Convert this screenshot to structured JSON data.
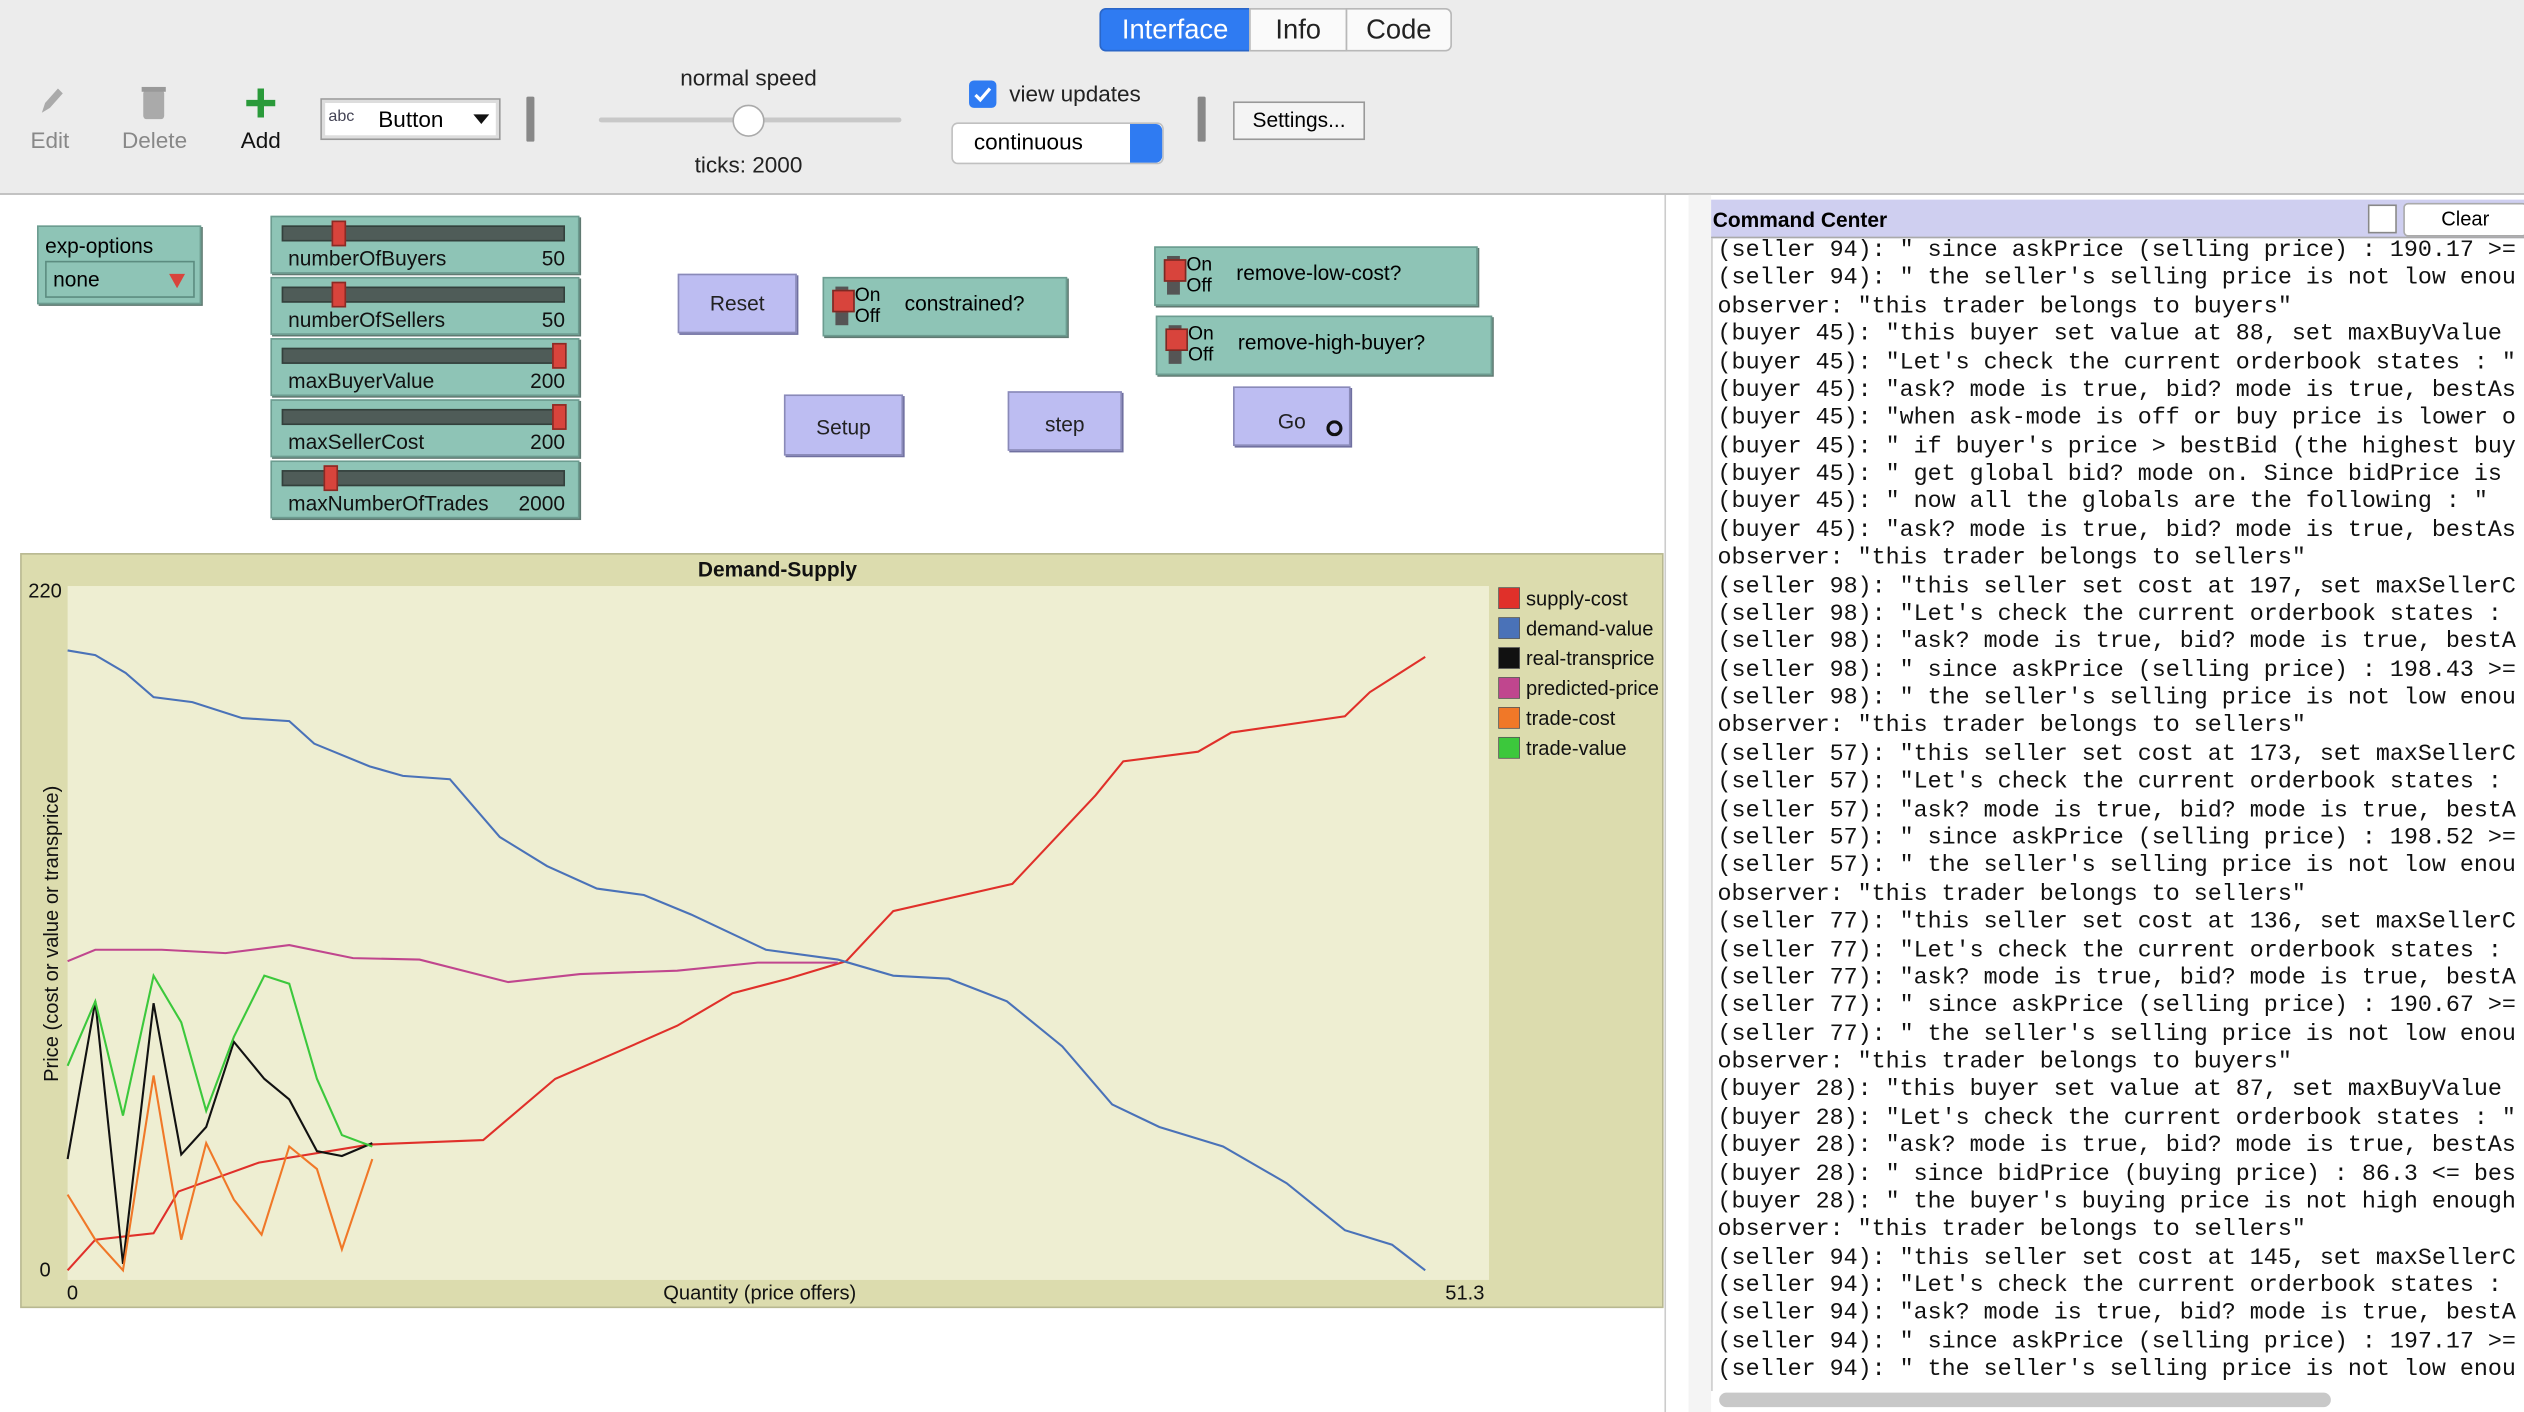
{
  "tabs": [
    "Interface",
    "Info",
    "Code"
  ],
  "toolbar": {
    "edit": "Edit",
    "delete": "Delete",
    "add": "Add",
    "widget_type": "Button",
    "speed_label": "normal speed",
    "ticks_label": "ticks: 2000",
    "view_updates": "view updates",
    "update_mode": "continuous",
    "settings": "Settings..."
  },
  "widgets": {
    "chooser": {
      "label": "exp-options",
      "value": "none"
    },
    "sliders": [
      {
        "name": "numberOfBuyers",
        "value": 50
      },
      {
        "name": "numberOfSellers",
        "value": 50
      },
      {
        "name": "maxBuyerValue",
        "value": 200
      },
      {
        "name": "maxSellerCost",
        "value": 200
      },
      {
        "name": "maxNumberOfTrades",
        "value": 2000
      }
    ],
    "buttons": [
      "Reset",
      "Setup",
      "step",
      "Go"
    ],
    "switches": [
      {
        "label": "constrained?",
        "on": "On",
        "off": "Off"
      },
      {
        "label": "remove-low-cost?",
        "on": "On",
        "off": "Off"
      },
      {
        "label": "remove-high-buyer?",
        "on": "On",
        "off": "Off"
      }
    ]
  },
  "command_center": {
    "title": "Command Center",
    "clear": "Clear",
    "lines": [
      "(seller 94): \" since askPrice (selling price) : 190.17 >=",
      "(seller 94): \" the seller's selling price is not low enou",
      "observer: \"this trader belongs to buyers\"",
      "(buyer 45): \"this buyer set value at 88, set maxBuyValue",
      "(buyer 45): \"Let's check the current orderbook states : \"",
      "(buyer 45): \"ask? mode is true, bid? mode is true, bestAs",
      "(buyer 45): \"when ask-mode is off or buy price is lower o",
      "(buyer 45): \" if buyer's price > bestBid (the highest buy",
      "(buyer 45): \" get global bid? mode on. Since bidPrice is",
      "(buyer 45): \" now all the globals are the following : \"",
      "(buyer 45): \"ask? mode is true, bid? mode is true, bestAs",
      "observer: \"this trader belongs to sellers\"",
      "(seller 98): \"this seller set cost at 197, set maxSellerC",
      "(seller 98): \"Let's check the current orderbook states :",
      "(seller 98): \"ask? mode is true, bid? mode is true, bestA",
      "(seller 98): \" since askPrice (selling price) : 198.43 >=",
      "(seller 98): \" the seller's selling price is not low enou",
      "observer: \"this trader belongs to sellers\"",
      "(seller 57): \"this seller set cost at 173, set maxSellerC",
      "(seller 57): \"Let's check the current orderbook states :",
      "(seller 57): \"ask? mode is true, bid? mode is true, bestA",
      "(seller 57): \" since askPrice (selling price) : 198.52 >=",
      "(seller 57): \" the seller's selling price is not low enou",
      "observer: \"this trader belongs to sellers\"",
      "(seller 77): \"this seller set cost at 136, set maxSellerC",
      "(seller 77): \"Let's check the current orderbook states :",
      "(seller 77): \"ask? mode is true, bid? mode is true, bestA",
      "(seller 77): \" since askPrice (selling price) : 190.67 >=",
      "(seller 77): \" the seller's selling price is not low enou",
      "observer: \"this trader belongs to buyers\"",
      "(buyer 28): \"this buyer set value at 87, set maxBuyValue",
      "(buyer 28): \"Let's check the current orderbook states : \"",
      "(buyer 28): \"ask? mode is true, bid? mode is true, bestAs",
      "(buyer 28): \" since bidPrice (buying price) : 86.3 <= bes",
      "(buyer 28): \" the buyer's buying price is not high enough",
      "observer: \"this trader belongs to sellers\"",
      "(seller 94): \"this seller set cost at 145, set maxSellerC",
      "(seller 94): \"Let's check the current orderbook states :",
      "(seller 94): \"ask? mode is true, bid? mode is true, bestA",
      "(seller 94): \" since askPrice (selling price) : 197.17 >=",
      "(seller 94): \" the seller's selling price is not low enou"
    ]
  },
  "chart_data": {
    "type": "line",
    "title": "Demand-Supply",
    "x_label": "Quantity (price offers)",
    "y_label": "Price (cost or value or transprice)",
    "xlim": [
      0,
      51.3
    ],
    "ylim": [
      0,
      220
    ],
    "xticks": [
      0,
      51.3
    ],
    "yticks": [
      0,
      220
    ],
    "series": [
      {
        "name": "supply-cost",
        "color": "#e0302a",
        "x": [
          0,
          1.0,
          3.1,
          4.0,
          6.9,
          10.9,
          15.0,
          17.6,
          19.9,
          22.0,
          24.0,
          26.0,
          28.1,
          29.8,
          34.1,
          37.1,
          38.1,
          40.8,
          42.0,
          46.1,
          47.0,
          49.0
        ],
        "values": [
          0,
          9.9,
          12.0,
          25.5,
          34.9,
          40.7,
          42.2,
          62.0,
          70.9,
          79.2,
          89.7,
          94.4,
          100.1,
          116.3,
          125.1,
          153.8,
          164.8,
          167.9,
          174.1,
          179.4,
          187.2,
          198.6
        ]
      },
      {
        "name": "demand-value",
        "color": "#4a72b8",
        "x": [
          0,
          1.0,
          2.1,
          3.1,
          4.5,
          6.3,
          8.0,
          8.9,
          10.9,
          12.1,
          13.8,
          15.6,
          17.3,
          19.1,
          20.8,
          22.5,
          25.2,
          27.8,
          29.8,
          31.8,
          33.9,
          35.9,
          37.7,
          39.4,
          41.7,
          44.0,
          46.1,
          47.8,
          49.0
        ],
        "values": [
          200.7,
          199.2,
          193.4,
          185.6,
          184.0,
          178.8,
          177.8,
          170.5,
          163.2,
          160.1,
          159.0,
          140.3,
          130.9,
          123.6,
          121.5,
          115.2,
          103.8,
          100.6,
          95.4,
          94.4,
          87.1,
          72.5,
          53.7,
          46.4,
          40.1,
          28.2,
          13.0,
          8.3,
          0
        ]
      },
      {
        "name": "real-transprice",
        "color": "#111111",
        "x": [
          0,
          1.0,
          2.0,
          3.1,
          4.1,
          5.0,
          6.0,
          7.1,
          8.0,
          9.0,
          9.9,
          11.0
        ],
        "values": [
          36.0,
          87.1,
          2.1,
          86.5,
          37.5,
          46.4,
          74.0,
          62.0,
          55.3,
          38.6,
          37.0,
          41.2
        ]
      },
      {
        "name": "predicted-price",
        "color": "#c0468e",
        "x": [
          0,
          1.0,
          3.4,
          5.7,
          8.0,
          10.3,
          12.7,
          15.9,
          18.5,
          22.0,
          24.9,
          27.8
        ],
        "values": [
          100.1,
          103.8,
          103.8,
          102.7,
          105.3,
          101.1,
          100.6,
          93.3,
          95.9,
          97.0,
          99.6,
          99.6
        ]
      },
      {
        "name": "trade-cost",
        "color": "#f07828",
        "x": [
          0,
          1.0,
          2.0,
          3.1,
          4.1,
          5.0,
          6.0,
          7.0,
          8.0,
          9.0,
          9.9,
          11.0
        ],
        "values": [
          24.5,
          9.9,
          0,
          63.1,
          9.9,
          41.2,
          22.9,
          11.5,
          40.1,
          32.8,
          6.8,
          36.0
        ]
      },
      {
        "name": "trade-value",
        "color": "#3cc83c",
        "x": [
          0,
          1.0,
          2.0,
          3.1,
          4.1,
          5.0,
          6.0,
          7.1,
          8.0,
          9.0,
          9.9,
          11.0
        ],
        "values": [
          66.2,
          87.1,
          50.1,
          95.4,
          80.3,
          51.6,
          75.6,
          95.4,
          92.8,
          62.0,
          43.8,
          40.1
        ]
      }
    ]
  }
}
